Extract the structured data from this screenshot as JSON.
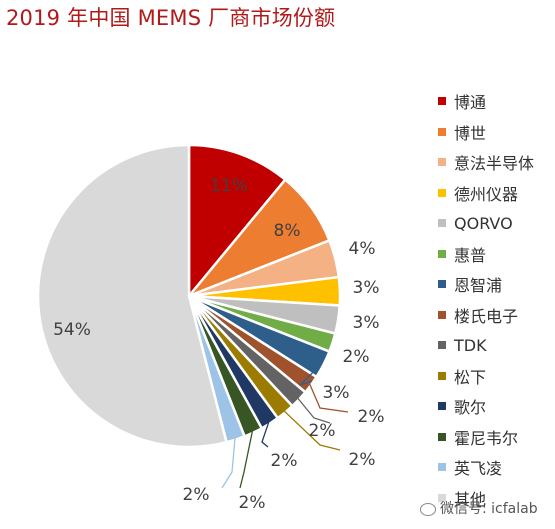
{
  "title": "2019 年中国 MEMS 厂商市场份额",
  "watermark": "微信号: icfalab",
  "chart_data": {
    "type": "pie",
    "title": "2019 年中国 MEMS 厂商市场份额",
    "start_angle_deg": 0,
    "direction": "clockwise",
    "legend_position": "right",
    "slices": [
      {
        "name": "博通",
        "value": 11,
        "label": "11%",
        "color": "#c00000"
      },
      {
        "name": "博世",
        "value": 8,
        "label": "8%",
        "color": "#ed7d31"
      },
      {
        "name": "意法半导体",
        "value": 4,
        "label": "4%",
        "color": "#f4b183"
      },
      {
        "name": "德州仪器",
        "value": 3,
        "label": "3%",
        "color": "#ffc000"
      },
      {
        "name": "QORVO",
        "value": 3,
        "label": "3%",
        "color": "#bfbfbf"
      },
      {
        "name": "惠普",
        "value": 2,
        "label": "2%",
        "color": "#70ad47"
      },
      {
        "name": "恩智浦",
        "value": 3,
        "label": "3%",
        "color": "#2e5f8a"
      },
      {
        "name": "楼氏电子",
        "value": 2,
        "label": "2%",
        "color": "#a0522d"
      },
      {
        "name": "TDK",
        "value": 2,
        "label": "2%",
        "color": "#636363"
      },
      {
        "name": "松下",
        "value": 2,
        "label": "2%",
        "color": "#9c7c00"
      },
      {
        "name": "歌尔",
        "value": 2,
        "label": "2%",
        "color": "#1f3864"
      },
      {
        "name": "霍尼韦尔",
        "value": 2,
        "label": "2%",
        "color": "#375623"
      },
      {
        "name": "英飞凌",
        "value": 2,
        "label": "2%",
        "color": "#9dc3e6"
      },
      {
        "name": "其他",
        "value": 54,
        "label": "54%",
        "color": "#d9d9d9"
      }
    ]
  }
}
